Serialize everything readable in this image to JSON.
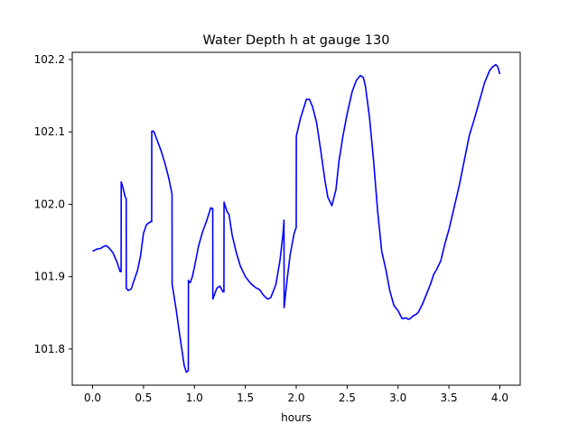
{
  "chart_data": {
    "type": "line",
    "title": "Water Depth h at gauge 130",
    "xlabel": "hours",
    "ylabel": "",
    "xlim": [
      -0.2,
      4.2
    ],
    "ylim": [
      101.75,
      102.21
    ],
    "x_ticks": [
      0.0,
      0.5,
      1.0,
      1.5,
      2.0,
      2.5,
      3.0,
      3.5,
      4.0
    ],
    "x_tick_labels": [
      "0.0",
      "0.5",
      "1.0",
      "1.5",
      "2.0",
      "2.5",
      "3.0",
      "3.5",
      "4.0"
    ],
    "y_ticks": [
      101.8,
      101.9,
      102.0,
      102.1,
      102.2
    ],
    "y_tick_labels": [
      "101.8",
      "101.9",
      "102.0",
      "102.1",
      "102.2"
    ],
    "grid": false,
    "series": [
      {
        "color": "#0000ff",
        "x": [
          0.0,
          0.04,
          0.08,
          0.1,
          0.13,
          0.16,
          0.2,
          0.24,
          0.27,
          0.28,
          0.281,
          0.3,
          0.32,
          0.33,
          0.331,
          0.35,
          0.38,
          0.4,
          0.44,
          0.47,
          0.5,
          0.53,
          0.55,
          0.57,
          0.58,
          0.581,
          0.6,
          0.63,
          0.67,
          0.71,
          0.75,
          0.78,
          0.781,
          0.82,
          0.86,
          0.9,
          0.92,
          0.94,
          0.941,
          0.95,
          0.96,
          0.98,
          1.0,
          1.04,
          1.08,
          1.12,
          1.16,
          1.18,
          1.181,
          1.22,
          1.25,
          1.28,
          1.29,
          1.291,
          1.32,
          1.34,
          1.37,
          1.41,
          1.45,
          1.5,
          1.55,
          1.6,
          1.64,
          1.68,
          1.72,
          1.75,
          1.8,
          1.84,
          1.87,
          1.88,
          1.881,
          1.91,
          1.94,
          1.98,
          2.0,
          2.001,
          2.04,
          2.08,
          2.1,
          2.13,
          2.16,
          2.2,
          2.24,
          2.28,
          2.31,
          2.35,
          2.39,
          2.42,
          2.46,
          2.5,
          2.55,
          2.59,
          2.63,
          2.66,
          2.68,
          2.72,
          2.76,
          2.8,
          2.84,
          2.88,
          2.92,
          2.96,
          3.0,
          3.04,
          3.08,
          3.1,
          3.12,
          3.15,
          3.18,
          3.2,
          3.24,
          3.28,
          3.32,
          3.35,
          3.38,
          3.42,
          3.46,
          3.5,
          3.55,
          3.6,
          3.65,
          3.7,
          3.75,
          3.8,
          3.85,
          3.9,
          3.93,
          3.96,
          3.98,
          4.0
        ],
        "y": [
          101.935,
          101.938,
          101.939,
          101.941,
          101.943,
          101.94,
          101.933,
          101.92,
          101.907,
          101.907,
          102.031,
          102.022,
          102.01,
          102.008,
          101.884,
          101.881,
          101.883,
          101.892,
          101.908,
          101.928,
          101.96,
          101.972,
          101.974,
          101.976,
          101.976,
          102.101,
          102.101,
          102.09,
          102.075,
          102.057,
          102.035,
          102.014,
          101.89,
          101.855,
          101.815,
          101.777,
          101.768,
          101.77,
          101.895,
          101.892,
          101.892,
          101.9,
          101.913,
          101.942,
          101.962,
          101.977,
          101.995,
          101.994,
          101.869,
          101.884,
          101.887,
          101.879,
          101.879,
          102.003,
          101.99,
          101.986,
          101.958,
          101.934,
          101.915,
          101.9,
          101.891,
          101.885,
          101.882,
          101.874,
          101.869,
          101.871,
          101.889,
          101.922,
          101.959,
          101.978,
          101.857,
          101.895,
          101.93,
          101.96,
          101.968,
          102.094,
          102.118,
          102.136,
          102.145,
          102.145,
          102.135,
          102.113,
          102.075,
          102.035,
          102.01,
          101.998,
          102.02,
          102.06,
          102.095,
          102.125,
          102.156,
          102.171,
          102.178,
          102.175,
          102.163,
          102.12,
          102.06,
          101.99,
          101.935,
          101.91,
          101.88,
          101.86,
          101.853,
          101.842,
          101.843,
          101.841,
          101.842,
          101.846,
          101.848,
          101.851,
          101.862,
          101.876,
          101.89,
          101.903,
          101.91,
          101.922,
          101.945,
          101.965,
          101.995,
          102.025,
          102.06,
          102.095,
          102.118,
          102.143,
          102.168,
          102.185,
          102.19,
          102.193,
          102.19,
          102.18
        ]
      }
    ]
  }
}
